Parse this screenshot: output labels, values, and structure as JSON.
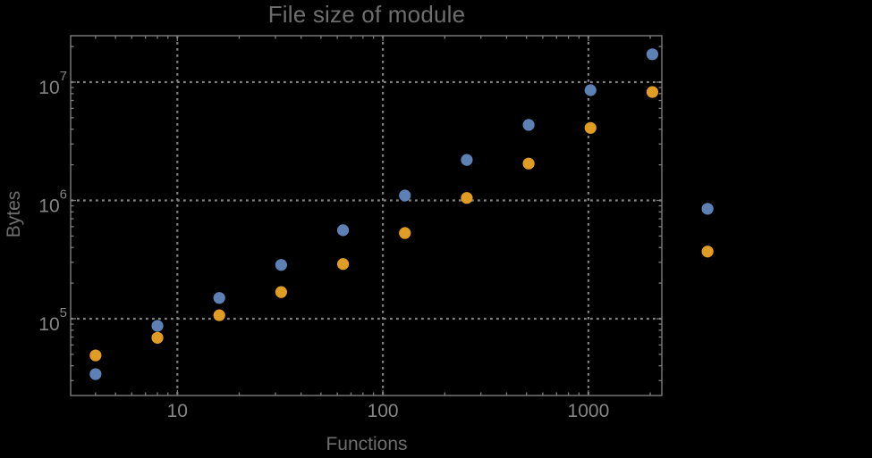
{
  "colors": {
    "background": "#000000",
    "frame": "#7d7d7d",
    "grid": "#828282",
    "tick_labels": "#868686",
    "text_labels": "#6e6e6e",
    "series_blue": "#5e81b5",
    "series_orange": "#e19c24"
  },
  "chart_data": {
    "type": "scatter",
    "title": "File size of module",
    "xlabel": "Functions",
    "ylabel": "Bytes",
    "x_scale": "log",
    "y_scale": "log",
    "grid": "dotted-major-gridlines",
    "legend": "none",
    "xlim": [
      3.1,
      2300
    ],
    "ylim": [
      22500,
      24500000
    ],
    "x_ticks": [
      {
        "value": 10,
        "label": "10"
      },
      {
        "value": 100,
        "label": "100"
      },
      {
        "value": 1000,
        "label": "1000"
      }
    ],
    "y_ticks": [
      {
        "value": 100000,
        "base": "10",
        "exp": "5"
      },
      {
        "value": 1000000,
        "base": "10",
        "exp": "6"
      },
      {
        "value": 10000000,
        "base": "10",
        "exp": "7"
      }
    ],
    "x": [
      4,
      8,
      16,
      32,
      64,
      128,
      256,
      512,
      1024,
      2048,
      3800
    ],
    "series": [
      {
        "name": "series-blue",
        "color": "#5e81b5",
        "values": [
          34000,
          87000,
          150000,
          285000,
          560000,
          1100000,
          2200000,
          4350000,
          8550000,
          17200000,
          850000
        ]
      },
      {
        "name": "series-orange",
        "color": "#e19c24",
        "values": [
          49000,
          69000,
          107000,
          168000,
          290000,
          530000,
          1050000,
          2050000,
          4100000,
          8250000,
          370000
        ]
      }
    ],
    "note_points_outside_frame": "the last point of each series is plotted right of the frame edge"
  }
}
